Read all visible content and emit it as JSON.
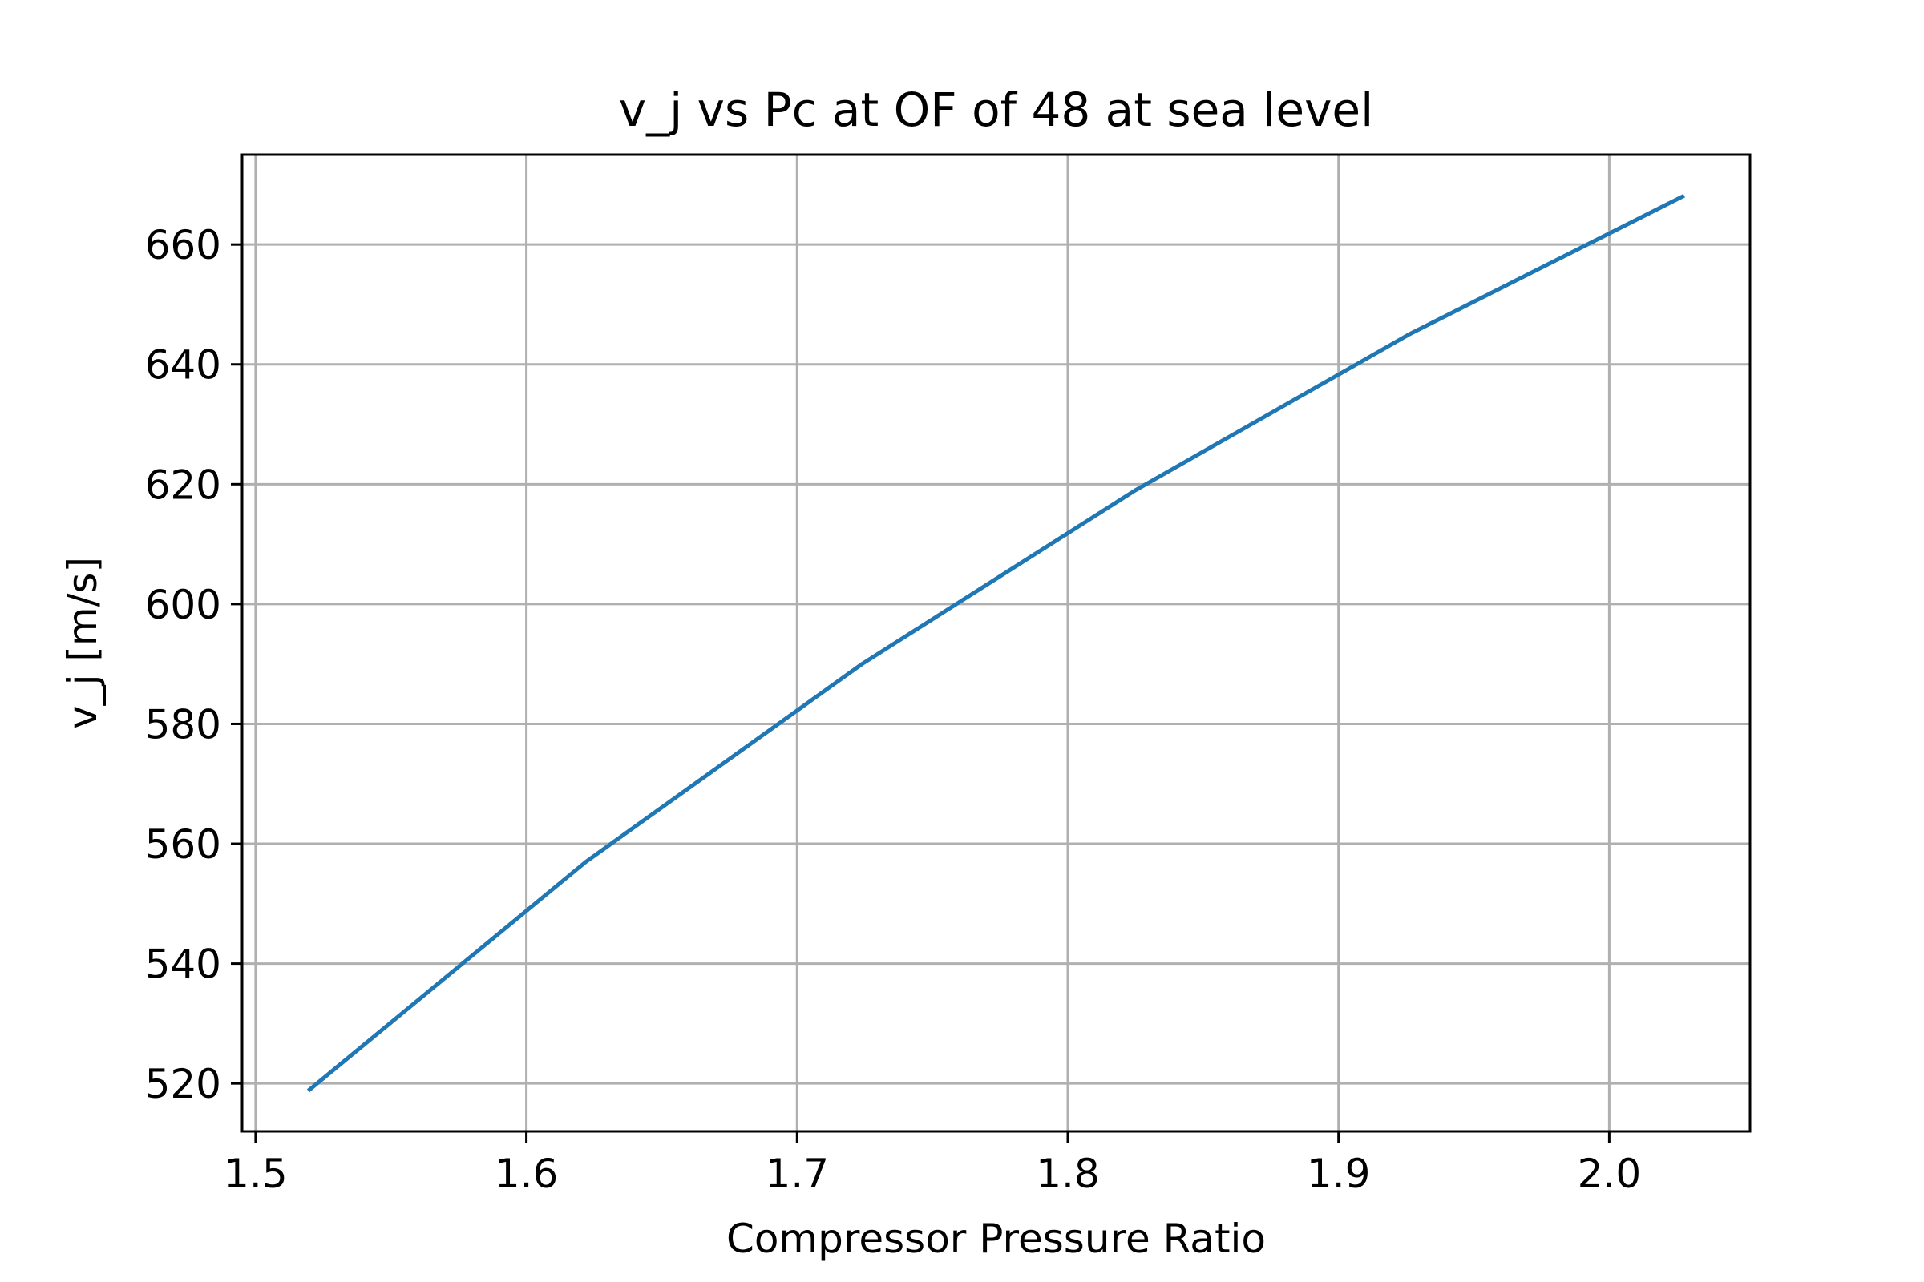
{
  "chart_data": {
    "type": "line",
    "title": "v_j vs Pc at OF of 48 at sea level",
    "xlabel": "Compressor Pressure Ratio",
    "ylabel": "v_j [m/s]",
    "xlim": [
      1.495,
      2.052
    ],
    "ylim": [
      512,
      675
    ],
    "xticks": [
      1.5,
      1.6,
      1.7,
      1.8,
      1.9,
      2.0
    ],
    "xtick_labels": [
      "1.5",
      "1.6",
      "1.7",
      "1.8",
      "1.9",
      "2.0"
    ],
    "yticks": [
      520,
      540,
      560,
      580,
      600,
      620,
      640,
      660
    ],
    "ytick_labels": [
      "520",
      "540",
      "560",
      "580",
      "600",
      "620",
      "640",
      "660"
    ],
    "grid": true,
    "series": [
      {
        "color": "#1f77b4",
        "x": [
          1.52,
          1.622,
          1.724,
          1.825,
          1.926,
          2.027
        ],
        "y": [
          519,
          557,
          590,
          619,
          645,
          668
        ]
      }
    ]
  }
}
